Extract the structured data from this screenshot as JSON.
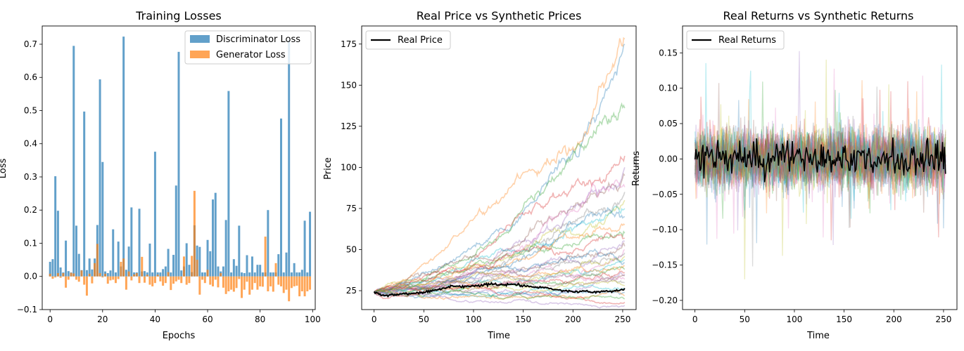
{
  "chart_data": [
    {
      "type": "bar",
      "title": "Training Losses",
      "xlabel": "Epochs",
      "ylabel": "Loss",
      "xlim": [
        -3,
        101
      ],
      "ylim": [
        -0.1,
        0.755
      ],
      "xticks": [
        0,
        20,
        40,
        60,
        80,
        100
      ],
      "yticks": [
        -0.1,
        0.0,
        0.1,
        0.2,
        0.3,
        0.4,
        0.5,
        0.6,
        0.7
      ],
      "ytick_labels": [
        "−0.1",
        "0.0",
        "0.1",
        "0.2",
        "0.3",
        "0.4",
        "0.5",
        "0.6",
        "0.7"
      ],
      "legend": "upper right",
      "x": [
        0,
        1,
        2,
        3,
        4,
        5,
        6,
        7,
        8,
        9,
        10,
        11,
        12,
        13,
        14,
        15,
        16,
        17,
        18,
        19,
        20,
        21,
        22,
        23,
        24,
        25,
        26,
        27,
        28,
        29,
        30,
        31,
        32,
        33,
        34,
        35,
        36,
        37,
        38,
        39,
        40,
        41,
        42,
        43,
        44,
        45,
        46,
        47,
        48,
        49,
        50,
        51,
        52,
        53,
        54,
        55,
        56,
        57,
        58,
        59,
        60,
        61,
        62,
        63,
        64,
        65,
        66,
        67,
        68,
        69,
        70,
        71,
        72,
        73,
        74,
        75,
        76,
        77,
        78,
        79,
        80,
        81,
        82,
        83,
        84,
        85,
        86,
        87,
        88,
        89,
        90,
        91,
        92,
        93,
        94,
        95,
        96,
        97,
        98,
        99
      ],
      "series": [
        {
          "name": "Discriminator Loss",
          "color": "#1f77b4",
          "values": [
            0.044,
            0.052,
            0.302,
            0.198,
            0.027,
            0.012,
            0.108,
            0.016,
            0.012,
            0.695,
            0.153,
            0.068,
            0.019,
            0.497,
            0.019,
            0.054,
            0.021,
            0.054,
            0.155,
            0.594,
            0.345,
            0.015,
            0.01,
            0.018,
            0.142,
            0.012,
            0.105,
            0.03,
            0.723,
            0.02,
            0.09,
            0.208,
            0.012,
            0.012,
            0.204,
            0.015,
            0.016,
            0.012,
            0.099,
            0.012,
            0.376,
            0.012,
            0.012,
            0.022,
            0.03,
            0.083,
            0.012,
            0.065,
            0.274,
            0.677,
            0.018,
            0.03,
            0.1,
            0.035,
            0.013,
            0.154,
            0.093,
            0.089,
            0.012,
            0.012,
            0.11,
            0.076,
            0.232,
            0.252,
            0.03,
            0.015,
            0.03,
            0.17,
            0.559,
            0.012,
            0.052,
            0.032,
            0.153,
            0.012,
            0.01,
            0.064,
            0.012,
            0.06,
            0.012,
            0.035,
            0.035,
            0.012,
            0.012,
            0.2,
            0.012,
            0.012,
            0.012,
            0.067,
            0.476,
            0.012,
            0.072,
            0.712,
            0.012,
            0.04,
            0.012,
            0.012,
            0.02,
            0.168,
            0.012,
            0.195
          ]
        },
        {
          "name": "Generator Loss",
          "color": "#ff7f0e",
          "values": [
            0.008,
            -0.007,
            -0.003,
            0.01,
            -0.004,
            0.01,
            -0.034,
            -0.01,
            0.011,
            0.009,
            -0.01,
            -0.016,
            0.018,
            -0.025,
            -0.058,
            0.008,
            -0.021,
            0.04,
            0.098,
            0.01,
            -0.003,
            0.008,
            -0.022,
            -0.012,
            -0.01,
            -0.02,
            -0.008,
            0.044,
            0.054,
            -0.04,
            0.015,
            -0.012,
            0.006,
            0.01,
            -0.02,
            0.059,
            -0.019,
            0.005,
            -0.025,
            -0.03,
            -0.02,
            0.005,
            -0.015,
            -0.028,
            -0.02,
            0.013,
            -0.041,
            -0.022,
            -0.015,
            -0.01,
            -0.02,
            0.06,
            -0.025,
            -0.02,
            0.062,
            0.258,
            0.05,
            -0.055,
            -0.01,
            -0.02,
            0.02,
            -0.025,
            -0.03,
            -0.01,
            -0.033,
            0.01,
            -0.034,
            -0.053,
            -0.045,
            -0.04,
            -0.046,
            -0.035,
            -0.008,
            -0.065,
            -0.04,
            -0.016,
            -0.055,
            -0.04,
            -0.02,
            -0.04,
            -0.03,
            -0.031,
            0.12,
            -0.045,
            -0.03,
            -0.046,
            0.04,
            -0.025,
            -0.03,
            -0.05,
            -0.04,
            -0.075,
            -0.035,
            -0.03,
            -0.028,
            -0.06,
            -0.045,
            -0.06,
            -0.045,
            -0.04
          ]
        }
      ]
    },
    {
      "type": "line",
      "title": "Real Price vs Synthetic Prices",
      "xlabel": "Time",
      "ylabel": "Price",
      "xlim": [
        -12.5,
        263.5
      ],
      "ylim": [
        13.5,
        186
      ],
      "xticks": [
        0,
        50,
        100,
        150,
        200,
        250
      ],
      "yticks": [
        25,
        50,
        75,
        100,
        125,
        150,
        175
      ],
      "legend": "upper left",
      "real_series": {
        "name": "Real Price",
        "color": "#000000",
        "points": [
          [
            0,
            24
          ],
          [
            5,
            23
          ],
          [
            10,
            22
          ],
          [
            20,
            22.5
          ],
          [
            30,
            23
          ],
          [
            40,
            23.5
          ],
          [
            50,
            24
          ],
          [
            60,
            25
          ],
          [
            70,
            26.5
          ],
          [
            80,
            28
          ],
          [
            90,
            27.5
          ],
          [
            100,
            28
          ],
          [
            110,
            28.5
          ],
          [
            120,
            29
          ],
          [
            130,
            28.5
          ],
          [
            140,
            29
          ],
          [
            150,
            28
          ],
          [
            160,
            27.5
          ],
          [
            170,
            27
          ],
          [
            180,
            26
          ],
          [
            190,
            25
          ],
          [
            200,
            24
          ],
          [
            210,
            25
          ],
          [
            220,
            24
          ],
          [
            230,
            25
          ],
          [
            240,
            24.5
          ],
          [
            252,
            26
          ]
        ]
      },
      "synthetic_final_values": [
        175,
        178,
        136,
        107,
        100,
        95,
        88,
        85,
        80,
        75,
        70,
        65,
        60,
        57,
        55,
        52,
        50,
        48,
        46,
        44,
        42,
        40,
        38,
        36,
        35,
        34,
        32,
        30,
        28,
        26,
        24,
        22,
        20,
        18,
        16
      ],
      "synthetic_colors": [
        "#1f77b4",
        "#ff7f0e",
        "#2ca02c",
        "#d62728",
        "#9467bd",
        "#8c564b",
        "#e377c2",
        "#7f7f7f",
        "#bcbd22",
        "#17becf"
      ]
    },
    {
      "type": "line",
      "title": "Real Returns vs Synthetic Returns",
      "xlabel": "Time",
      "ylabel": "Returns",
      "xlim": [
        -12.5,
        263.5
      ],
      "ylim": [
        -0.213,
        0.188
      ],
      "xticks": [
        0,
        50,
        100,
        150,
        200,
        250
      ],
      "yticks": [
        -0.2,
        -0.15,
        -0.1,
        -0.05,
        0.0,
        0.05,
        0.1,
        0.15
      ],
      "ytick_labels": [
        "−0.20",
        "−0.15",
        "−0.10",
        "−0.05",
        "0.00",
        "0.05",
        "0.10",
        "0.15"
      ],
      "legend": "upper left",
      "real_series": {
        "name": "Real Returns",
        "color": "#000000"
      },
      "synthetic_min": -0.175,
      "synthetic_max": 0.166,
      "synthetic_colors": [
        "#1f77b4",
        "#ff7f0e",
        "#2ca02c",
        "#d62728",
        "#9467bd",
        "#8c564b",
        "#e377c2",
        "#7f7f7f",
        "#bcbd22",
        "#17becf"
      ]
    }
  ]
}
